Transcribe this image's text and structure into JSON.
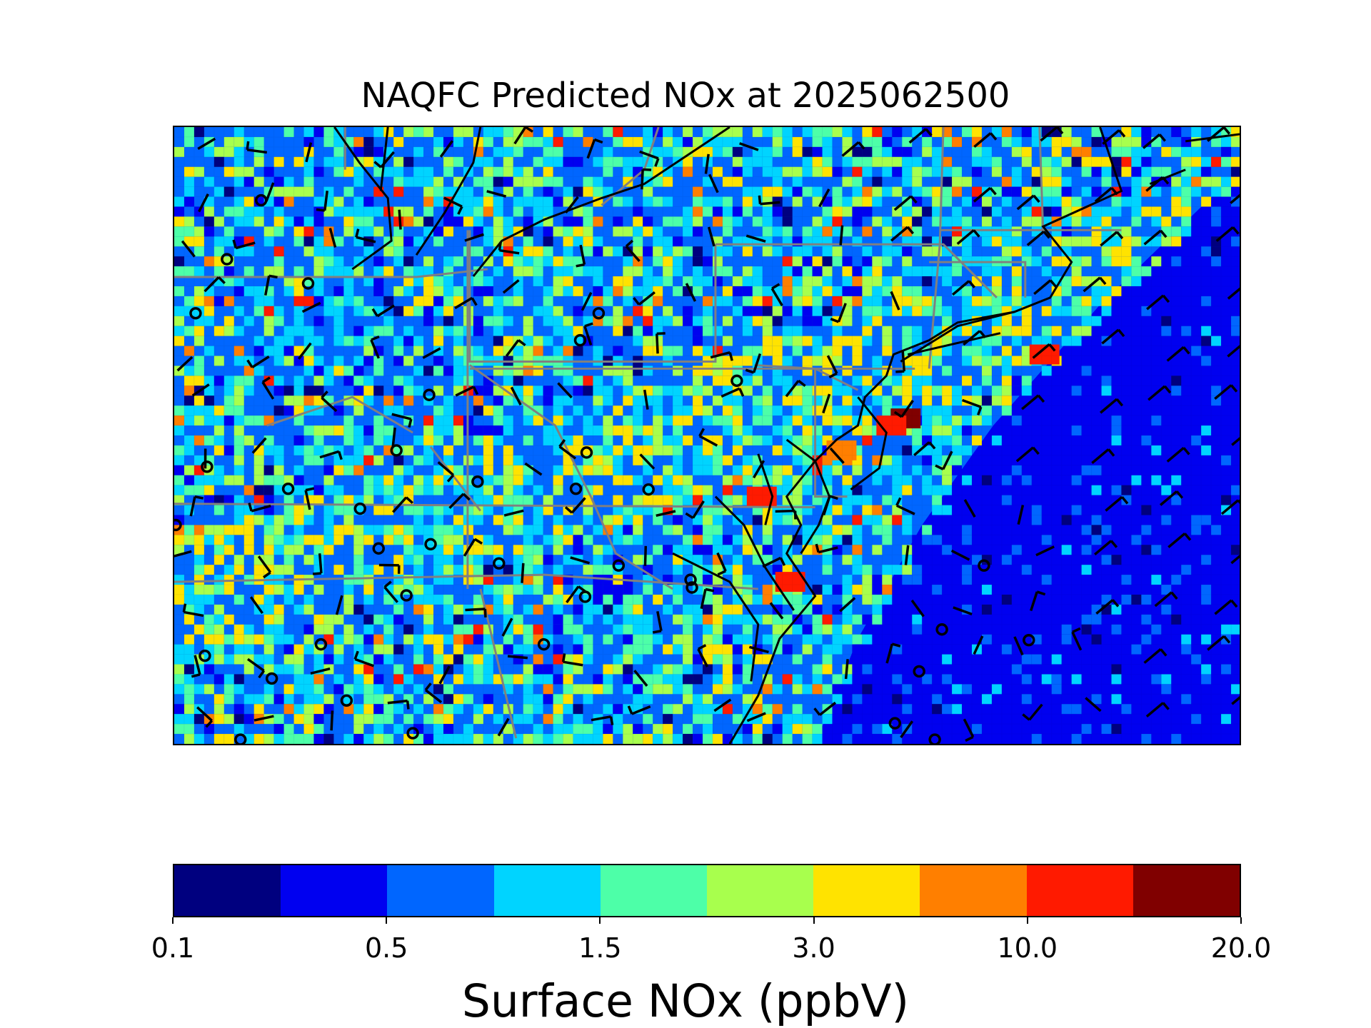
{
  "title": "NAQFC Predicted NOx at 2025062500",
  "colorbar": {
    "label": "Surface NOx (ppbV)",
    "tick_labels": [
      "0.1",
      "0.5",
      "1.5",
      "3.0",
      "10.0",
      "20.0"
    ],
    "bin_colors": [
      "#00007f",
      "#0000f0",
      "#0066ff",
      "#00d4ff",
      "#4dffa8",
      "#a8ff4d",
      "#ffe300",
      "#ff7f00",
      "#ff1a00",
      "#800000"
    ]
  },
  "map": {
    "region": "Mid-Atlantic / Northeast United States",
    "coastline_color": "#000000",
    "state_border_color": "#808080",
    "features": [
      "NOx field",
      "coastlines",
      "state borders",
      "wind barbs",
      "calm-wind circles"
    ]
  }
}
